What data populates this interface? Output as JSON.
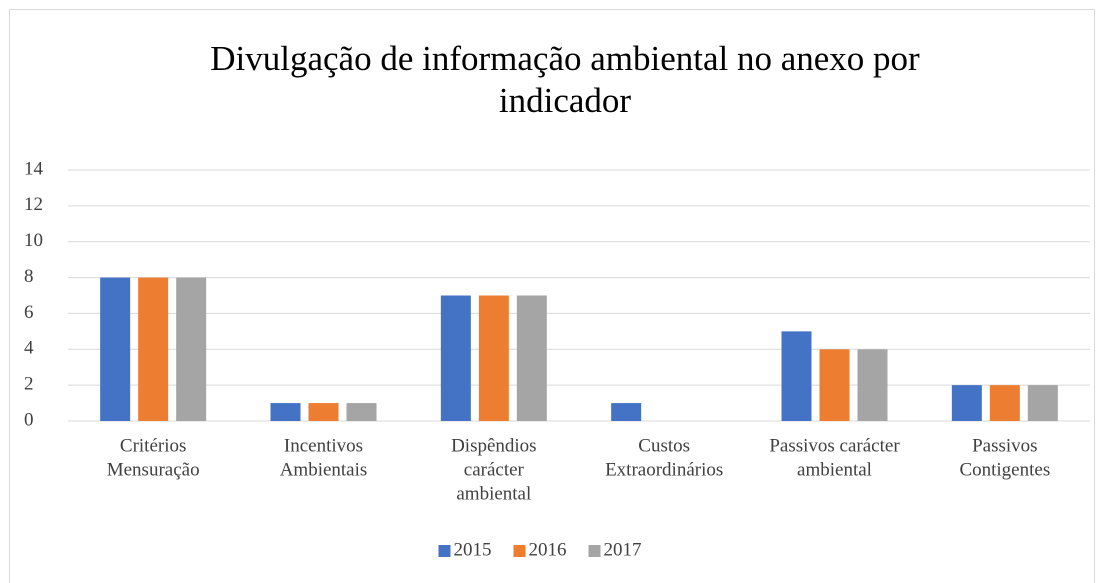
{
  "chart_data": {
    "type": "bar",
    "title": "Divulgação de informação ambiental no anexo por indicador",
    "categories": [
      [
        "Critérios",
        "Mensuração"
      ],
      [
        "Incentivos",
        "Ambientais"
      ],
      [
        "Dispêndios",
        "carácter",
        "ambiental"
      ],
      [
        "Custos",
        "Extraordinários"
      ],
      [
        "Passivos carácter",
        "ambiental"
      ],
      [
        "Passivos",
        "Contigentes"
      ]
    ],
    "series": [
      {
        "name": "2015",
        "color": "#4472c4",
        "values": [
          8,
          1,
          7,
          1,
          5,
          2
        ]
      },
      {
        "name": "2016",
        "color": "#ed7d31",
        "values": [
          8,
          1,
          7,
          0,
          4,
          2
        ]
      },
      {
        "name": "2017",
        "color": "#a5a5a5",
        "values": [
          8,
          1,
          7,
          0,
          4,
          2
        ]
      }
    ],
    "ylim": [
      0,
      14
    ],
    "yticks": [
      0,
      2,
      4,
      6,
      8,
      10,
      12,
      14
    ],
    "grid": true,
    "legend": "bottom"
  }
}
